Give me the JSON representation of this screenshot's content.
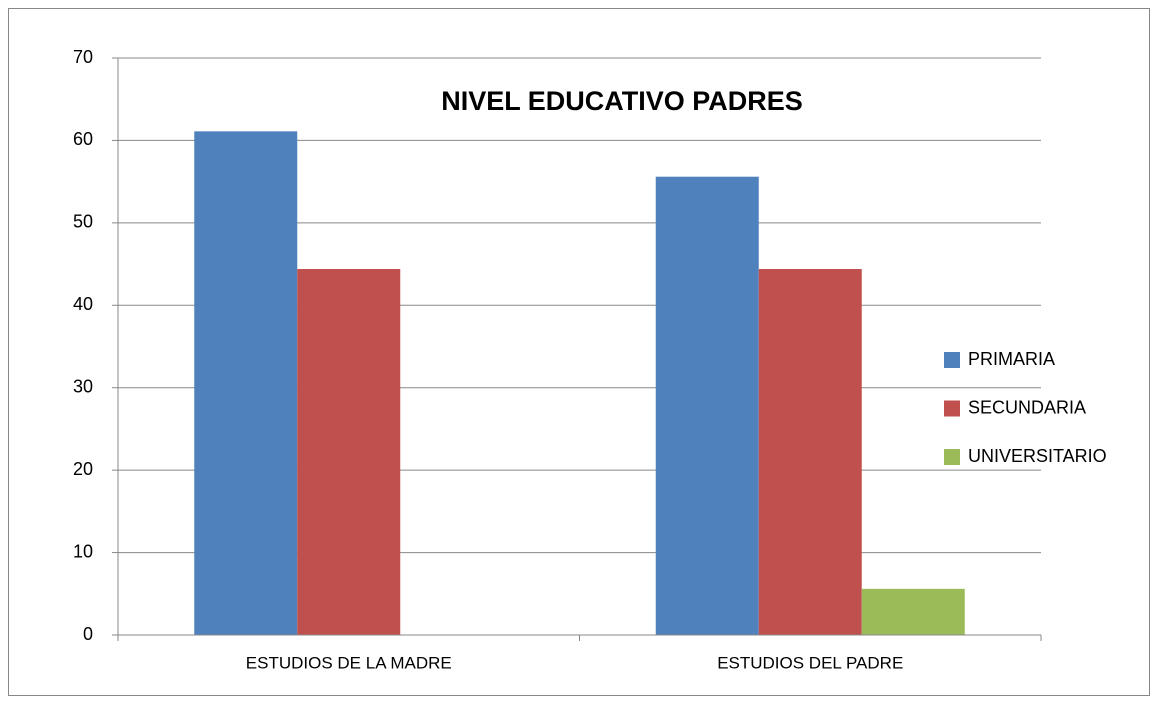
{
  "chart_data": {
    "type": "bar",
    "title": "NIVEL EDUCATIVO PADRES",
    "categories": [
      "ESTUDIOS DE LA MADRE",
      "ESTUDIOS DEL PADRE"
    ],
    "series": [
      {
        "name": "PRIMARIA",
        "color": "#4f81bd",
        "values": [
          61.1,
          55.6
        ]
      },
      {
        "name": "SECUNDARIA",
        "color": "#c0504d",
        "values": [
          44.4,
          44.4
        ]
      },
      {
        "name": "UNIVERSITARIO",
        "color": "#9bbb59",
        "values": [
          0,
          5.6
        ]
      }
    ],
    "ylim": [
      0,
      70
    ],
    "yticks": [
      0,
      10,
      20,
      30,
      40,
      50,
      60,
      70
    ],
    "grid": true,
    "legend": "right"
  }
}
